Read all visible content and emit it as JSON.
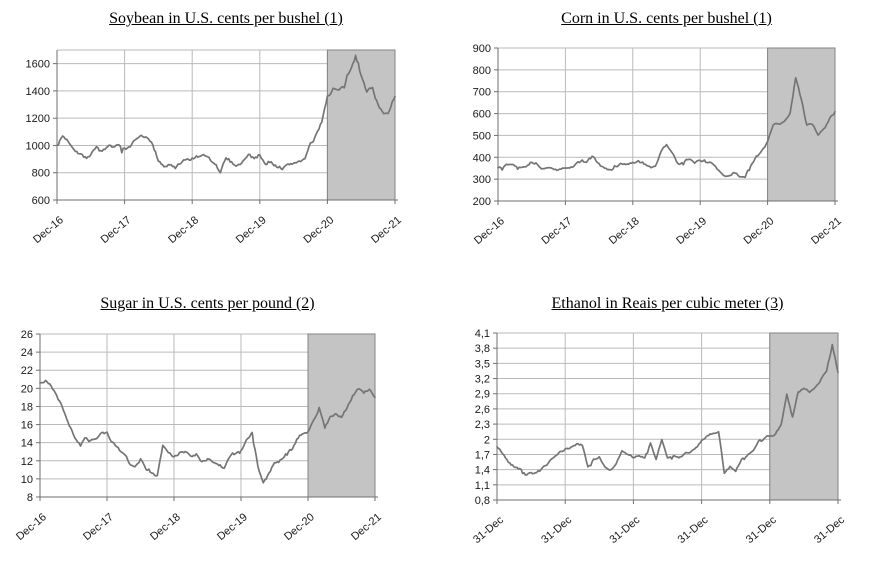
{
  "chart_data": [
    {
      "id": "soybean",
      "type": "line",
      "title": "Soybean in U.S. cents per bushel (1)",
      "x_start": "Dec-16",
      "x_end": "Dec-21",
      "x_interval": "monthly",
      "x_tick_labels": [
        "Dec-16",
        "Dec-17",
        "Dec-18",
        "Dec-19",
        "Dec-20",
        "Dec-21"
      ],
      "y_tick_labels": [
        "600",
        "800",
        "1000",
        "1200",
        "1400",
        "1600"
      ],
      "y_tick_values": [
        600,
        800,
        1000,
        1200,
        1400,
        1600
      ],
      "ylim": [
        600,
        1700
      ],
      "grid": "horizontal+vertical",
      "legend": "none",
      "line_color": "#757575",
      "highlight": {
        "from_tick": "Dec-20",
        "to_tick": "Dec-21",
        "fill": "#c4c4c4",
        "border": "#838383"
      },
      "series": [
        {
          "values_monthly": [
            1000,
            1068,
            1032,
            988,
            952,
            915,
            922,
            1000,
            948,
            968,
            992,
            988,
            960,
            962,
            1030,
            1048,
            1042,
            1018,
            898,
            842,
            862,
            826,
            858,
            882,
            900,
            910,
            906,
            896,
            856,
            806,
            898,
            876,
            858,
            890,
            928,
            908,
            932,
            882,
            884,
            858,
            834,
            848,
            868,
            892,
            906,
            1000,
            1062,
            1180,
            1360,
            1420,
            1400,
            1420,
            1540,
            1655,
            1520,
            1385,
            1435,
            1300,
            1235,
            1262,
            1358
          ]
        }
      ]
    },
    {
      "id": "corn",
      "type": "line",
      "title": "Corn in U.S. cents per bushel (1)",
      "x_start": "Dec-16",
      "x_end": "Dec-21",
      "x_interval": "monthly",
      "x_tick_labels": [
        "Dec-16",
        "Dec-17",
        "Dec-18",
        "Dec-19",
        "Dec-20",
        "Dec-21"
      ],
      "y_tick_labels": [
        "200",
        "300",
        "400",
        "500",
        "600",
        "700",
        "800",
        "900"
      ],
      "y_tick_values": [
        200,
        300,
        400,
        500,
        600,
        700,
        800,
        900
      ],
      "ylim": [
        200,
        900
      ],
      "grid": "horizontal+vertical",
      "legend": "none",
      "line_color": "#757575",
      "highlight": {
        "from_tick": "Dec-20",
        "to_tick": "Dec-21",
        "fill": "#c4c4c4",
        "border": "#838383"
      },
      "series": [
        {
          "values_monthly": [
            352,
            362,
            370,
            362,
            358,
            368,
            382,
            372,
            352,
            350,
            348,
            342,
            350,
            352,
            368,
            382,
            388,
            402,
            365,
            345,
            340,
            352,
            368,
            372,
            378,
            380,
            372,
            362,
            352,
            432,
            452,
            415,
            370,
            372,
            390,
            378,
            388,
            382,
            378,
            340,
            318,
            315,
            325,
            315,
            308,
            360,
            400,
            425,
            470,
            545,
            552,
            555,
            600,
            765,
            660,
            545,
            555,
            510,
            540,
            575,
            608
          ]
        }
      ]
    },
    {
      "id": "sugar",
      "type": "line",
      "title": "Sugar in U.S. cents per pound (2)",
      "x_start": "Dec-16",
      "x_end": "Dec-21",
      "x_interval": "monthly",
      "x_tick_labels": [
        "Dec-16",
        "Dec-17",
        "Dec-18",
        "Dec-19",
        "Dec-20",
        "Dec-21"
      ],
      "y_tick_labels": [
        "8",
        "10",
        "12",
        "14",
        "16",
        "18",
        "20",
        "22",
        "24",
        "26"
      ],
      "y_tick_values": [
        8,
        10,
        12,
        14,
        16,
        18,
        20,
        22,
        24,
        26
      ],
      "ylim": [
        8,
        26
      ],
      "grid": "horizontal+vertical",
      "legend": "none",
      "line_color": "#757575",
      "highlight": {
        "from_tick": "Dec-20",
        "to_tick": "Dec-21",
        "fill": "#c4c4c4",
        "border": "#838383"
      },
      "series": [
        {
          "values_monthly": [
            20.6,
            20.8,
            20.4,
            19.2,
            18.0,
            16.3,
            14.8,
            14.0,
            14.4,
            14.2,
            14.5,
            15.2,
            15.0,
            14.2,
            13.5,
            12.8,
            11.8,
            11.5,
            12.3,
            11.2,
            10.5,
            10.2,
            13.6,
            12.8,
            12.5,
            12.9,
            13.0,
            12.5,
            12.7,
            11.8,
            12.4,
            12.1,
            11.6,
            11.2,
            12.4,
            12.7,
            13.3,
            14.3,
            15.2,
            11.5,
            9.6,
            10.5,
            11.9,
            12.1,
            12.8,
            13.2,
            14.4,
            15.0,
            15.2,
            16.2,
            18.0,
            15.5,
            16.8,
            17.2,
            17.0,
            17.8,
            19.2,
            19.8,
            19.3,
            20.0,
            19.0
          ]
        }
      ]
    },
    {
      "id": "ethanol",
      "type": "line",
      "title": "Ethanol in Reais per cubic meter (3)",
      "x_start": "31-Dec (2016)",
      "x_end": "31-Dec (2021)",
      "x_interval": "monthly",
      "x_tick_labels": [
        "31-Dec",
        "31-Dec",
        "31-Dec",
        "31-Dec",
        "31-Dec",
        "31-Dec"
      ],
      "y_tick_labels": [
        "0,8",
        "1,1",
        "1,4",
        "1,7",
        "2",
        "2,3",
        "2,6",
        "2,9",
        "3,2",
        "3,5",
        "3,8",
        "4,1"
      ],
      "y_tick_values": [
        0.8,
        1.1,
        1.4,
        1.7,
        2.0,
        2.3,
        2.6,
        2.9,
        3.2,
        3.5,
        3.8,
        4.1
      ],
      "ylim": [
        0.8,
        4.1
      ],
      "grid": "horizontal+vertical",
      "legend": "none",
      "line_color": "#757575",
      "highlight": {
        "from_tick": "31-Dec (2020)",
        "to_tick": "31-Dec (2021)",
        "fill": "#c4c4c4",
        "border": "#838383"
      },
      "series": [
        {
          "values_monthly": [
            1.85,
            1.72,
            1.55,
            1.47,
            1.42,
            1.3,
            1.35,
            1.32,
            1.42,
            1.52,
            1.62,
            1.72,
            1.8,
            1.85,
            1.9,
            1.88,
            1.45,
            1.58,
            1.65,
            1.45,
            1.4,
            1.55,
            1.75,
            1.7,
            1.65,
            1.65,
            1.62,
            1.9,
            1.62,
            2.0,
            1.64,
            1.66,
            1.62,
            1.7,
            1.76,
            1.82,
            1.95,
            2.05,
            2.1,
            2.15,
            1.33,
            1.45,
            1.36,
            1.62,
            1.66,
            1.76,
            1.95,
            2.0,
            2.05,
            2.1,
            2.28,
            2.9,
            2.45,
            2.95,
            3.0,
            2.92,
            3.05,
            3.2,
            3.35,
            3.88,
            3.32
          ]
        }
      ]
    }
  ],
  "style": {
    "gridline_color": "#bababa",
    "axis_color": "#6f6f6f",
    "label_color": "#1a1a1a",
    "background": "#ffffff"
  }
}
